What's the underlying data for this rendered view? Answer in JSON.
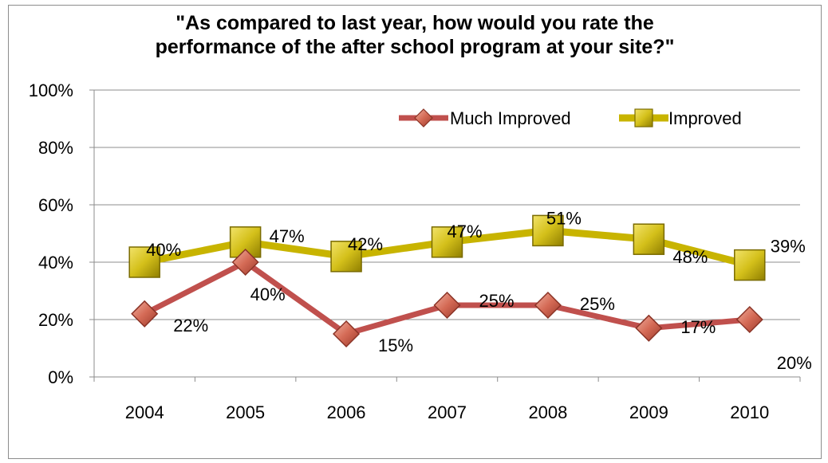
{
  "chart_data": {
    "type": "line",
    "title_lines": [
      "\"As compared to last year, how would you rate the",
      "performance of the after school program at your site?\""
    ],
    "categories": [
      "2004",
      "2005",
      "2006",
      "2007",
      "2008",
      "2009",
      "2010"
    ],
    "ylim": [
      0,
      100
    ],
    "yticks": [
      0,
      20,
      40,
      60,
      80,
      100
    ],
    "ytick_labels": [
      "0%",
      "20%",
      "40%",
      "60%",
      "80%",
      "100%"
    ],
    "grid": true,
    "legend_position": "top-right",
    "series": [
      {
        "name": "Much Improved",
        "values": [
          22,
          40,
          15,
          25,
          25,
          17,
          20
        ],
        "labels": [
          "22%",
          "40%",
          "15%",
          "25%",
          "25%",
          "17%",
          "20%"
        ],
        "color": "#c0504d",
        "marker": "diamond"
      },
      {
        "name": "Improved",
        "values": [
          40,
          47,
          42,
          47,
          51,
          48,
          39
        ],
        "labels": [
          "40%",
          "47%",
          "42%",
          "47%",
          "51%",
          "48%",
          "39%"
        ],
        "color": "#c8b400",
        "marker": "square"
      }
    ]
  }
}
